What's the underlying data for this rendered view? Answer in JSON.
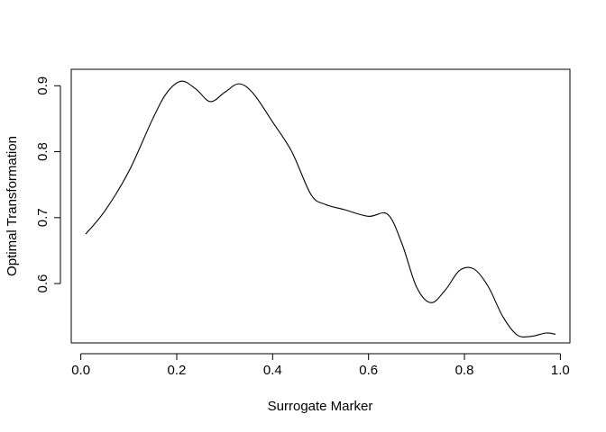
{
  "chart_data": {
    "type": "line",
    "title": "",
    "xlabel": "Surrogate Marker",
    "ylabel": "Optimal Transformation",
    "xlim": [
      -0.02,
      1.02
    ],
    "ylim": [
      0.51,
      0.925
    ],
    "x_ticks": [
      0.0,
      0.2,
      0.4,
      0.6,
      0.8,
      1.0
    ],
    "x_tick_labels": [
      "0.0",
      "0.2",
      "0.4",
      "0.6",
      "0.8",
      "1.0"
    ],
    "y_ticks": [
      0.6,
      0.7,
      0.8,
      0.9
    ],
    "y_tick_labels": [
      "0.6",
      "0.7",
      "0.8",
      "0.9"
    ],
    "grid": false,
    "legend": "none",
    "line_color": "#000000",
    "series": [
      {
        "x": [
          0.01,
          0.05,
          0.1,
          0.15,
          0.18,
          0.21,
          0.24,
          0.27,
          0.3,
          0.33,
          0.36,
          0.4,
          0.44,
          0.48,
          0.51,
          0.55,
          0.6,
          0.64,
          0.67,
          0.7,
          0.73,
          0.76,
          0.79,
          0.82,
          0.85,
          0.88,
          0.91,
          0.94,
          0.97,
          0.99
        ],
        "y": [
          0.675,
          0.71,
          0.77,
          0.85,
          0.89,
          0.907,
          0.895,
          0.876,
          0.89,
          0.903,
          0.888,
          0.845,
          0.8,
          0.735,
          0.72,
          0.712,
          0.702,
          0.705,
          0.66,
          0.595,
          0.571,
          0.59,
          0.62,
          0.622,
          0.595,
          0.55,
          0.522,
          0.52,
          0.525,
          0.523
        ]
      }
    ]
  }
}
